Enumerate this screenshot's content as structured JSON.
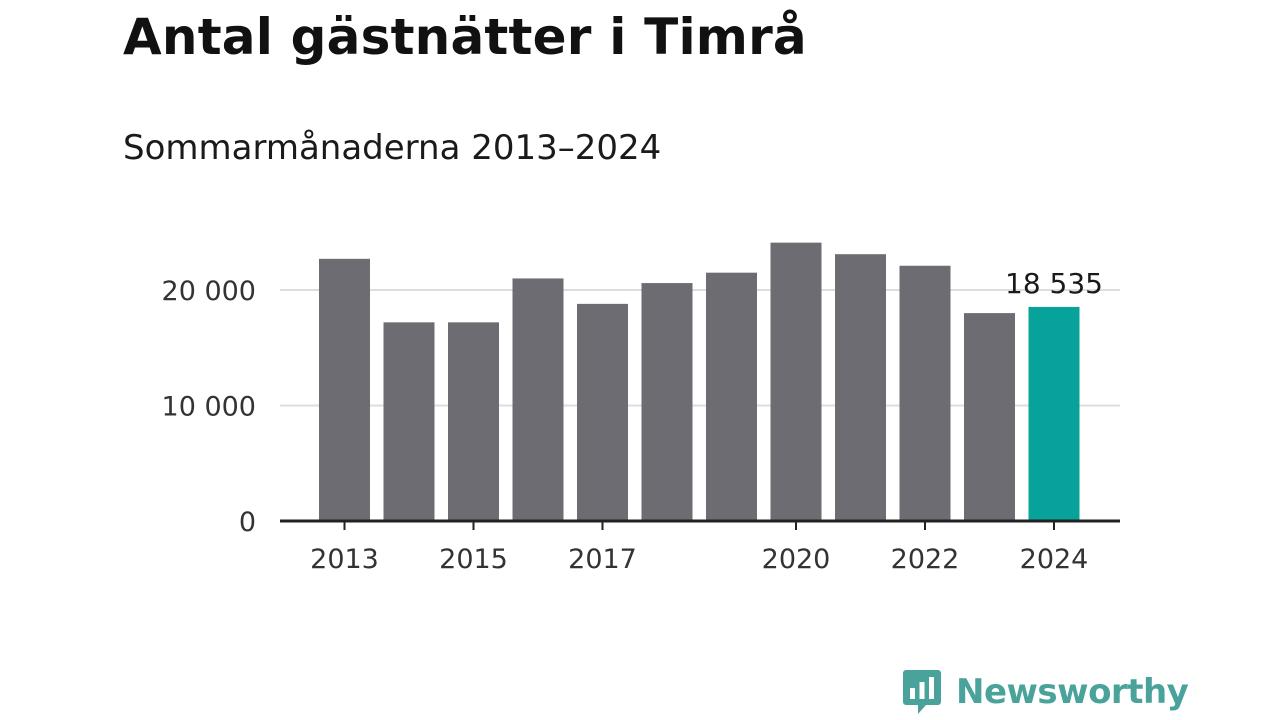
{
  "header": {
    "title": "Antal gästnätter i Timrå",
    "subtitle": "Sommarmånaderna 2013–2024"
  },
  "brand": {
    "name": "Newsworthy",
    "logo_icon": "bar-chart-speech-bubble-icon",
    "color": "#4aa39a"
  },
  "colors": {
    "bar": "#6d6c72",
    "highlight": "#07a29a",
    "grid": "#dddddd",
    "axis": "#222222"
  },
  "chart_data": {
    "type": "bar",
    "categories": [
      "2013",
      "2014",
      "2015",
      "2016",
      "2017",
      "2018",
      "2019",
      "2020",
      "2021",
      "2022",
      "2023",
      "2024"
    ],
    "values": [
      22700,
      17200,
      17200,
      21000,
      18800,
      20600,
      21500,
      24100,
      23100,
      22100,
      18000,
      18535
    ],
    "highlight_index": 11,
    "data_labels": [
      {
        "index": 11,
        "text": "18 535"
      }
    ],
    "y_ticks": [
      0,
      10000,
      20000
    ],
    "y_tick_labels": [
      "0",
      "10 000",
      "20 000"
    ],
    "x_tick_labels": [
      {
        "index": 0,
        "text": "2013"
      },
      {
        "index": 2,
        "text": "2015"
      },
      {
        "index": 4,
        "text": "2017"
      },
      {
        "index": 7,
        "text": "2020"
      },
      {
        "index": 9,
        "text": "2022"
      },
      {
        "index": 11,
        "text": "2024"
      }
    ],
    "ylim": [
      0,
      25000
    ],
    "grid": true,
    "xlabel": "",
    "ylabel": ""
  }
}
